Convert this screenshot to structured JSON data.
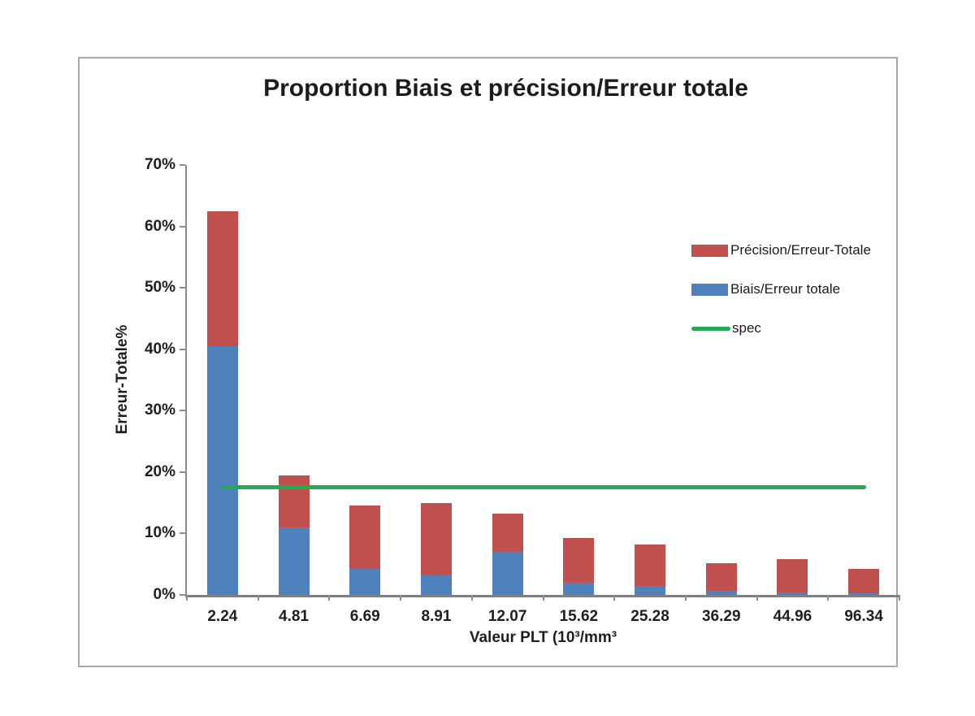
{
  "chart_data": {
    "type": "bar",
    "stacked": true,
    "title": "Proportion Biais et précision/Erreur totale",
    "xlabel": "Valeur PLT (10³/mm³",
    "ylabel": "Erreur-Totale%",
    "ylim": [
      0,
      70
    ],
    "ytick_step": 10,
    "yticks": [
      "0%",
      "10%",
      "20%",
      "30%",
      "40%",
      "50%",
      "60%",
      "70%"
    ],
    "categories": [
      "2.24",
      "4.81",
      "6.69",
      "8.91",
      "12.07",
      "15.62",
      "25.28",
      "36.29",
      "44.96",
      "96.34"
    ],
    "series": [
      {
        "name": "Biais/Erreur totale",
        "color": "#4F81BD",
        "values": [
          40.5,
          11.0,
          4.2,
          3.2,
          7.0,
          2.0,
          1.5,
          0.6,
          0.4,
          0.3
        ]
      },
      {
        "name": "Précision/Erreur-Totale",
        "color": "#C0504D",
        "values": [
          22.0,
          8.5,
          10.3,
          11.7,
          6.3,
          7.2,
          6.7,
          4.5,
          5.4,
          4.0
        ]
      }
    ],
    "spec_line": {
      "name": "spec",
      "value": 17.5,
      "color": "#23AA55"
    },
    "grid": false,
    "legend": {
      "position": "right",
      "items": [
        {
          "label": "Précision/Erreur-Totale",
          "swatch": "box",
          "color": "#C0504D"
        },
        {
          "label": "Biais/Erreur totale",
          "swatch": "box",
          "color": "#4F81BD"
        },
        {
          "label": "spec",
          "swatch": "line",
          "color": "#23AA55"
        }
      ]
    }
  },
  "colors": {
    "background": "#ffffff",
    "frame_border": "#a9a9a9",
    "axis": "#8c8c8c",
    "text": "#1f1f1f"
  }
}
